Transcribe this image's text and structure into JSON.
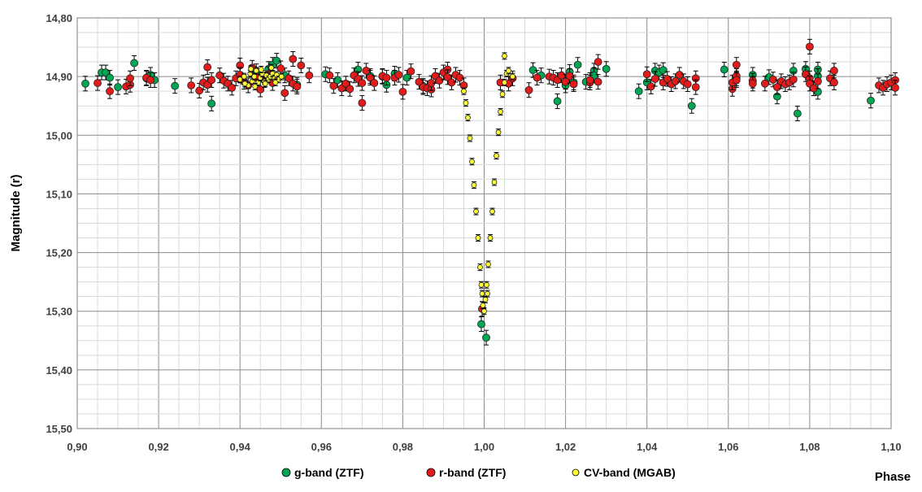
{
  "chart_data": {
    "type": "scatter",
    "ylabel": "Magnitude (r)",
    "xlabel": "Phase",
    "xlim": [
      0.9,
      1.1
    ],
    "ylim": [
      14.8,
      15.5
    ],
    "y_inverted": true,
    "grid": true,
    "legend_position": "bottom",
    "x_ticks": [
      "0,90",
      "0,92",
      "0,94",
      "0,96",
      "0,98",
      "1,00",
      "1,02",
      "1,04",
      "1,06",
      "1,08",
      "1,10"
    ],
    "y_ticks": [
      "14,80",
      "14,90",
      "15,00",
      "15,10",
      "15,20",
      "15,30",
      "15,40",
      "15,50"
    ],
    "series": [
      {
        "name": "g-band (ZTF)",
        "color": "#00a651",
        "points": [
          [
            0.902,
            14.912
          ],
          [
            0.906,
            14.893
          ],
          [
            0.907,
            14.893
          ],
          [
            0.908,
            14.902
          ],
          [
            0.91,
            14.918
          ],
          [
            0.914,
            14.877
          ],
          [
            0.917,
            14.903
          ],
          [
            0.918,
            14.897
          ],
          [
            0.919,
            14.906
          ],
          [
            0.924,
            14.916
          ],
          [
            0.933,
            14.946
          ],
          [
            0.944,
            14.891
          ],
          [
            0.947,
            14.887
          ],
          [
            0.948,
            14.88
          ],
          [
            0.949,
            14.873
          ],
          [
            0.951,
            14.898
          ],
          [
            0.954,
            14.914
          ],
          [
            0.961,
            14.896
          ],
          [
            0.964,
            14.906
          ],
          [
            0.969,
            14.888
          ],
          [
            0.972,
            14.899
          ],
          [
            0.975,
            14.9
          ],
          [
            0.976,
            14.914
          ],
          [
            0.978,
            14.895
          ],
          [
            0.981,
            14.902
          ],
          [
            0.985,
            14.916
          ],
          [
            0.9993,
            15.322
          ],
          [
            1.0005,
            15.345
          ],
          [
            1.012,
            14.889
          ],
          [
            1.014,
            14.898
          ],
          [
            1.018,
            14.942
          ],
          [
            1.02,
            14.915
          ],
          [
            1.021,
            14.892
          ],
          [
            1.022,
            14.91
          ],
          [
            1.023,
            14.88
          ],
          [
            1.025,
            14.909
          ],
          [
            1.027,
            14.89
          ],
          [
            1.027,
            14.898
          ],
          [
            1.03,
            14.887
          ],
          [
            1.038,
            14.925
          ],
          [
            1.04,
            14.91
          ],
          [
            1.042,
            14.89
          ],
          [
            1.043,
            14.893
          ],
          [
            1.044,
            14.889
          ],
          [
            1.051,
            14.95
          ],
          [
            1.059,
            14.888
          ],
          [
            1.062,
            14.903
          ],
          [
            1.066,
            14.897
          ],
          [
            1.07,
            14.901
          ],
          [
            1.072,
            14.934
          ],
          [
            1.076,
            14.89
          ],
          [
            1.077,
            14.963
          ],
          [
            1.079,
            14.887
          ],
          [
            1.081,
            14.92
          ],
          [
            1.082,
            14.888
          ],
          [
            1.082,
            14.899
          ],
          [
            1.082,
            14.926
          ],
          [
            1.095,
            14.941
          ]
        ]
      },
      {
        "name": "r-band (ZTF)",
        "color": "#e31b1b",
        "points": [
          [
            0.905,
            14.911
          ],
          [
            0.908,
            14.925
          ],
          [
            0.912,
            14.917
          ],
          [
            0.913,
            14.914
          ],
          [
            0.913,
            14.903
          ],
          [
            0.917,
            14.902
          ],
          [
            0.918,
            14.906
          ],
          [
            0.928,
            14.915
          ],
          [
            0.93,
            14.924
          ],
          [
            0.931,
            14.91
          ],
          [
            0.932,
            14.884
          ],
          [
            0.932,
            14.914
          ],
          [
            0.933,
            14.906
          ],
          [
            0.935,
            14.898
          ],
          [
            0.936,
            14.907
          ],
          [
            0.937,
            14.912
          ],
          [
            0.938,
            14.919
          ],
          [
            0.939,
            14.903
          ],
          [
            0.94,
            14.881
          ],
          [
            0.94,
            14.897
          ],
          [
            0.941,
            14.909
          ],
          [
            0.942,
            14.915
          ],
          [
            0.943,
            14.885
          ],
          [
            0.944,
            14.902
          ],
          [
            0.945,
            14.922
          ],
          [
            0.946,
            14.906
          ],
          [
            0.947,
            14.896
          ],
          [
            0.948,
            14.911
          ],
          [
            0.95,
            14.886
          ],
          [
            0.951,
            14.928
          ],
          [
            0.952,
            14.903
          ],
          [
            0.953,
            14.87
          ],
          [
            0.953,
            14.912
          ],
          [
            0.954,
            14.917
          ],
          [
            0.955,
            14.881
          ],
          [
            0.957,
            14.898
          ],
          [
            0.962,
            14.898
          ],
          [
            0.963,
            14.916
          ],
          [
            0.965,
            14.92
          ],
          [
            0.966,
            14.912
          ],
          [
            0.967,
            14.921
          ],
          [
            0.968,
            14.898
          ],
          [
            0.969,
            14.904
          ],
          [
            0.97,
            14.911
          ],
          [
            0.97,
            14.945
          ],
          [
            0.971,
            14.89
          ],
          [
            0.972,
            14.902
          ],
          [
            0.973,
            14.911
          ],
          [
            0.975,
            14.899
          ],
          [
            0.976,
            14.902
          ],
          [
            0.978,
            14.902
          ],
          [
            0.979,
            14.897
          ],
          [
            0.98,
            14.926
          ],
          [
            0.982,
            14.891
          ],
          [
            0.984,
            14.909
          ],
          [
            0.985,
            14.918
          ],
          [
            0.986,
            14.92
          ],
          [
            0.987,
            14.922
          ],
          [
            0.987,
            14.911
          ],
          [
            0.988,
            14.899
          ],
          [
            0.989,
            14.907
          ],
          [
            0.99,
            14.893
          ],
          [
            0.991,
            14.888
          ],
          [
            0.991,
            14.901
          ],
          [
            0.992,
            14.91
          ],
          [
            0.993,
            14.897
          ],
          [
            0.994,
            14.902
          ],
          [
            0.995,
            14.915
          ],
          [
            0.9995,
            15.296
          ],
          [
            1.004,
            14.91
          ],
          [
            1.006,
            14.912
          ],
          [
            1.007,
            14.903
          ],
          [
            1.011,
            14.923
          ],
          [
            1.013,
            14.902
          ],
          [
            1.016,
            14.9
          ],
          [
            1.017,
            14.902
          ],
          [
            1.018,
            14.906
          ],
          [
            1.019,
            14.898
          ],
          [
            1.02,
            14.909
          ],
          [
            1.021,
            14.899
          ],
          [
            1.022,
            14.913
          ],
          [
            1.026,
            14.91
          ],
          [
            1.026,
            14.906
          ],
          [
            1.028,
            14.875
          ],
          [
            1.028,
            14.909
          ],
          [
            1.04,
            14.896
          ],
          [
            1.041,
            14.917
          ],
          [
            1.042,
            14.904
          ],
          [
            1.044,
            14.91
          ],
          [
            1.045,
            14.904
          ],
          [
            1.046,
            14.913
          ],
          [
            1.047,
            14.908
          ],
          [
            1.048,
            14.897
          ],
          [
            1.049,
            14.908
          ],
          [
            1.05,
            14.913
          ],
          [
            1.052,
            14.903
          ],
          [
            1.052,
            14.918
          ],
          [
            1.061,
            14.921
          ],
          [
            1.061,
            14.91
          ],
          [
            1.062,
            14.899
          ],
          [
            1.062,
            14.88
          ],
          [
            1.062,
            14.906
          ],
          [
            1.066,
            14.907
          ],
          [
            1.066,
            14.912
          ],
          [
            1.069,
            14.912
          ],
          [
            1.071,
            14.905
          ],
          [
            1.072,
            14.918
          ],
          [
            1.073,
            14.908
          ],
          [
            1.074,
            14.913
          ],
          [
            1.075,
            14.91
          ],
          [
            1.076,
            14.905
          ],
          [
            1.079,
            14.896
          ],
          [
            1.08,
            14.849
          ],
          [
            1.08,
            14.903
          ],
          [
            1.08,
            14.912
          ],
          [
            1.081,
            14.92
          ],
          [
            1.082,
            14.908
          ],
          [
            1.085,
            14.903
          ],
          [
            1.086,
            14.89
          ],
          [
            1.086,
            14.91
          ],
          [
            1.097,
            14.915
          ],
          [
            1.098,
            14.919
          ],
          [
            1.099,
            14.913
          ],
          [
            1.1,
            14.91
          ],
          [
            1.101,
            14.906
          ],
          [
            1.101,
            14.919
          ]
        ]
      },
      {
        "name": "CV-band (MGAB)",
        "color": "#ffff33",
        "points": [
          [
            0.94,
            14.905
          ],
          [
            0.941,
            14.9
          ],
          [
            0.942,
            14.915
          ],
          [
            0.9425,
            14.895
          ],
          [
            0.943,
            14.908
          ],
          [
            0.9435,
            14.9
          ],
          [
            0.944,
            14.89
          ],
          [
            0.9445,
            14.91
          ],
          [
            0.945,
            14.902
          ],
          [
            0.9455,
            14.895
          ],
          [
            0.946,
            14.908
          ],
          [
            0.9465,
            14.898
          ],
          [
            0.947,
            14.905
          ],
          [
            0.9475,
            14.9
          ],
          [
            0.948,
            14.895
          ],
          [
            0.9485,
            14.903
          ],
          [
            0.949,
            14.897
          ],
          [
            0.9495,
            14.905
          ],
          [
            0.9412,
            14.912
          ],
          [
            0.9437,
            14.917
          ],
          [
            0.9462,
            14.912
          ],
          [
            0.9487,
            14.91
          ],
          [
            0.9427,
            14.887
          ],
          [
            0.9452,
            14.888
          ],
          [
            0.9477,
            14.885
          ],
          [
            0.9502,
            14.9
          ],
          [
            0.995,
            14.925
          ],
          [
            0.9955,
            14.945
          ],
          [
            0.996,
            14.97
          ],
          [
            0.9965,
            15.005
          ],
          [
            0.997,
            15.045
          ],
          [
            0.9975,
            15.085
          ],
          [
            0.998,
            15.13
          ],
          [
            0.9985,
            15.175
          ],
          [
            0.999,
            15.225
          ],
          [
            0.9995,
            15.27
          ],
          [
            1.0,
            15.3
          ],
          [
            1.0003,
            15.28
          ],
          [
            1.0006,
            15.255
          ],
          [
            1.001,
            15.22
          ],
          [
            1.0015,
            15.175
          ],
          [
            1.002,
            15.13
          ],
          [
            1.0025,
            15.08
          ],
          [
            1.003,
            15.035
          ],
          [
            1.0035,
            14.995
          ],
          [
            1.004,
            14.96
          ],
          [
            1.0045,
            14.93
          ],
          [
            1.005,
            14.91
          ],
          [
            1.0055,
            14.895
          ],
          [
            1.006,
            14.89
          ],
          [
            1.005,
            14.865
          ],
          [
            1.007,
            14.9
          ],
          [
            0.9997,
            15.29
          ],
          [
            0.9993,
            15.255
          ],
          [
            1.0008,
            15.27
          ]
        ]
      }
    ]
  },
  "legend": {
    "items": [
      {
        "label": "g-band (ZTF)",
        "color": "#00a651"
      },
      {
        "label": "r-band (ZTF)",
        "color": "#e31b1b"
      },
      {
        "label": "CV-band (MGAB)",
        "color": "#ffff33"
      }
    ]
  }
}
